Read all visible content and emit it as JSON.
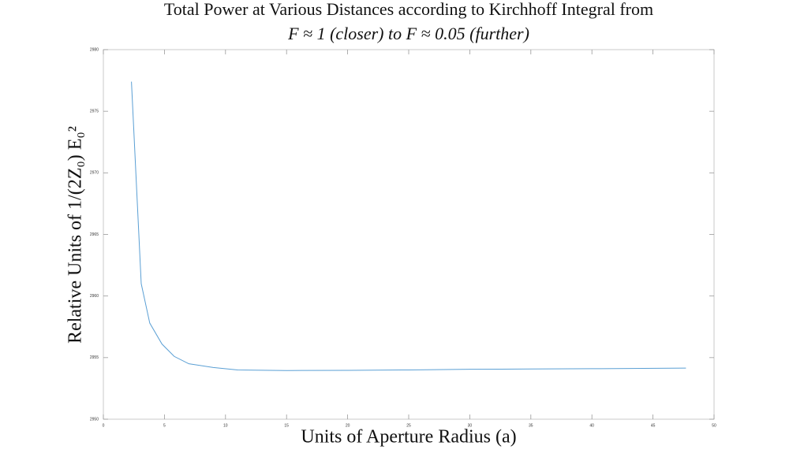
{
  "chart_data": {
    "type": "line",
    "title": [
      "Total Power at Various Distances according to Kirchhoff Integral from",
      "F ≈ 1 (closer) to F ≈ 0.05 (further)"
    ],
    "xlabel": "Units of Aperture Radius (a)",
    "ylabel": "Relative Units of 1/(2Z₀) E₀²",
    "x": [
      2.3,
      3.1,
      3.8,
      4.8,
      5.8,
      7,
      9,
      11,
      15,
      20,
      25,
      30,
      35,
      40,
      47.7
    ],
    "series": [
      {
        "color": "#5a9fd4",
        "values": [
          2977.4,
          2961,
          2957.8,
          2956.1,
          2955.1,
          2954.5,
          2954.2,
          2954.0,
          2953.95,
          2953.97,
          2954.0,
          2954.05,
          2954.08,
          2954.1,
          2954.15
        ]
      }
    ],
    "xlim": [
      0,
      50
    ],
    "ylim": [
      2950,
      2980
    ],
    "xticks": [
      0,
      5,
      10,
      15,
      20,
      25,
      30,
      35,
      40,
      45,
      50
    ],
    "yticks": [
      2950,
      2955,
      2960,
      2965,
      2970,
      2975,
      2980
    ],
    "grid": false
  }
}
